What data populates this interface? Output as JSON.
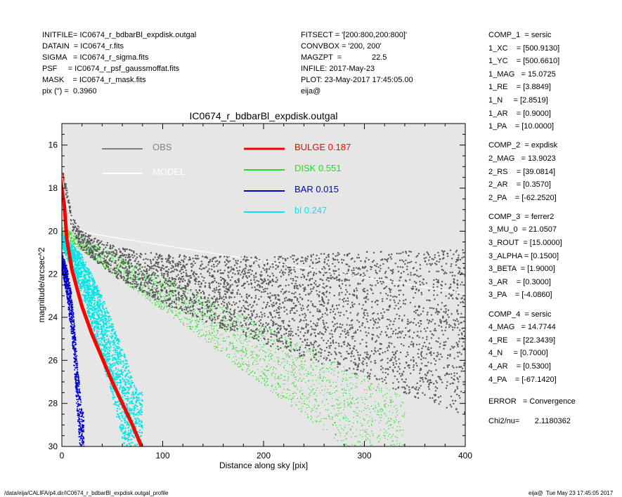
{
  "header_left": [
    "INITFILE= IC0674_r_bdbarBl_expdisk.outgal",
    "DATAIN  = IC0674_r.fits",
    "SIGMA   = IC0674_r_sigma.fits",
    "PSF     = IC0674_r_psf_gaussmoffat.fits",
    "MASK    = IC0674_r_mask.fits",
    "pix (\") =  0.3960"
  ],
  "header_mid": [
    "FITSECT = '[200:800,200:800]'",
    "CONVBOX = '200, 200'",
    "MAGZPT  =              22.5",
    "INFILE: 2017-May-23",
    "PLOT: 23-May-2017 17:45:05.00",
    "eija@"
  ],
  "components": [
    [
      "COMP_1  = sersic",
      "1_XC    = [500.9130]",
      "1_YC    = [500.6610]",
      "1_MAG   = 15.0725",
      "1_RE    = [3.8849]",
      "1_N     = [2.8519]",
      "1_AR    = [0.9000]",
      "1_PA    = [10.0000]"
    ],
    [
      "COMP_2  = expdisk",
      "2_MAG   = 13.9023",
      "2_RS    = [39.0814]",
      "2_AR    = [0.3570]",
      "2_PA    = [-62.2520]"
    ],
    [
      "COMP_3  = ferrer2",
      "3_MU_0  = 21.0507",
      "3_ROUT  = [15.0000]",
      "3_ALPHA = [0.1500]",
      "3_BETA  = [1.9000]",
      "3_AR    = [0.3000]",
      "3_PA    = [-4.0860]"
    ],
    [
      "COMP_4  = sersic",
      "4_MAG   = 14.7744",
      "4_RE    = [22.3439]",
      "4_N     = [0.7000]",
      "4_AR    = [0.5300]",
      "4_PA    = [-67.1420]"
    ]
  ],
  "error_line": "ERROR   = Convergence",
  "chi2_line": "Chi2/nu=       2.1180362",
  "footer_left": "/data/eija/CALIFA/p4.dir/IC0674_r_bdbarBl_expdisk.outgal_profile",
  "footer_right": "eija@  Tue May 23 17:45:05 2017",
  "chart_data": {
    "type": "scatter",
    "title": "IC0674_r_bdbarBl_expdisk.outgal",
    "xlabel": "Distance along sky [pix]",
    "ylabel": "magnitude/arcsec^2",
    "xlim": [
      0,
      400
    ],
    "ylim": [
      30,
      15
    ],
    "y_inverted": true,
    "xticks": [
      0,
      100,
      200,
      300,
      400
    ],
    "yticks": [
      16,
      18,
      20,
      22,
      24,
      26,
      28,
      30
    ],
    "background": "#e6e6e6",
    "legend": [
      {
        "label": "OBS",
        "color": "#808080"
      },
      {
        "label": "MODEL",
        "color": "#ffffff"
      },
      {
        "label": "BULGE",
        "value": "0.187",
        "color": "#ff0000"
      },
      {
        "label": "DISK",
        "value": "0.551",
        "color": "#22dd22"
      },
      {
        "label": "BAR",
        "value": "0.015",
        "color": "#0000cc"
      },
      {
        "label": "bl",
        "value": "0.247",
        "color": "#00e6e6"
      }
    ],
    "series": [
      {
        "name": "OBS",
        "color": "#595959",
        "points": [
          [
            0,
            17.3
          ],
          [
            5,
            18.2
          ],
          [
            10,
            19.6
          ],
          [
            20,
            20.4
          ],
          [
            40,
            21.0
          ],
          [
            60,
            21.5
          ],
          [
            80,
            21.8
          ],
          [
            100,
            22.1
          ],
          [
            150,
            22.6
          ],
          [
            200,
            23.0
          ],
          [
            250,
            23.3
          ],
          [
            300,
            23.6
          ],
          [
            350,
            24.0
          ],
          [
            400,
            24.3
          ]
        ]
      },
      {
        "name": "BULGE",
        "color": "#ff0000",
        "points": [
          [
            0,
            17.3
          ],
          [
            5,
            20.4
          ],
          [
            10,
            21.8
          ],
          [
            20,
            23.5
          ],
          [
            30,
            24.8
          ],
          [
            40,
            25.9
          ],
          [
            50,
            27.0
          ],
          [
            60,
            28.0
          ],
          [
            70,
            29.0
          ],
          [
            79,
            30.0
          ]
        ]
      },
      {
        "name": "DISK",
        "color": "#22dd22",
        "points": [
          [
            0,
            20.0
          ],
          [
            50,
            21.5
          ],
          [
            100,
            22.9
          ],
          [
            150,
            24.3
          ],
          [
            200,
            25.8
          ],
          [
            250,
            27.2
          ],
          [
            300,
            28.7
          ],
          [
            340,
            30.0
          ]
        ]
      },
      {
        "name": "BAR",
        "color": "#0000cc",
        "points": [
          [
            0,
            21.4
          ],
          [
            5,
            22.3
          ],
          [
            10,
            24.0
          ],
          [
            15,
            27.0
          ],
          [
            20,
            30.0
          ]
        ]
      },
      {
        "name": "bl",
        "color": "#00e6e6",
        "points": [
          [
            0,
            20.4
          ],
          [
            20,
            22.0
          ],
          [
            40,
            24.5
          ],
          [
            60,
            27.5
          ],
          [
            75,
            30.0
          ]
        ]
      }
    ]
  }
}
